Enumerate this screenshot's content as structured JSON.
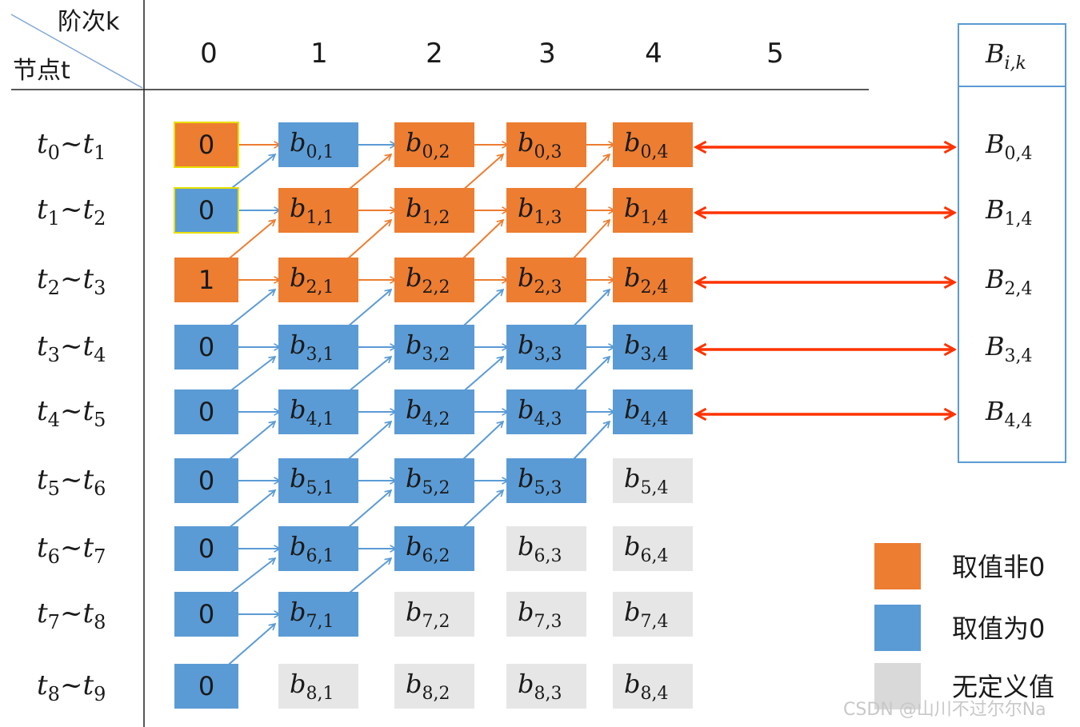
{
  "header": {
    "order_label": "阶次k",
    "node_label": "节点t",
    "orders": [
      "0",
      "1",
      "2",
      "3",
      "4",
      "5"
    ],
    "result_header": {
      "base": "B",
      "sub": "i,k"
    }
  },
  "rows": [
    {
      "interval": {
        "a": "0",
        "b": "1"
      },
      "k0": "0",
      "cells": [
        {
          "i": "0",
          "k": "1"
        },
        {
          "i": "0",
          "k": "2"
        },
        {
          "i": "0",
          "k": "3"
        },
        {
          "i": "0",
          "k": "4"
        }
      ],
      "result": {
        "i": "0",
        "k": "4"
      }
    },
    {
      "interval": {
        "a": "1",
        "b": "2"
      },
      "k0": "0",
      "cells": [
        {
          "i": "1",
          "k": "1"
        },
        {
          "i": "1",
          "k": "2"
        },
        {
          "i": "1",
          "k": "3"
        },
        {
          "i": "1",
          "k": "4"
        }
      ],
      "result": {
        "i": "1",
        "k": "4"
      }
    },
    {
      "interval": {
        "a": "2",
        "b": "3"
      },
      "k0": "1",
      "cells": [
        {
          "i": "2",
          "k": "1"
        },
        {
          "i": "2",
          "k": "2"
        },
        {
          "i": "2",
          "k": "3"
        },
        {
          "i": "2",
          "k": "4"
        }
      ],
      "result": {
        "i": "2",
        "k": "4"
      }
    },
    {
      "interval": {
        "a": "3",
        "b": "4"
      },
      "k0": "0",
      "cells": [
        {
          "i": "3",
          "k": "1"
        },
        {
          "i": "3",
          "k": "2"
        },
        {
          "i": "3",
          "k": "3"
        },
        {
          "i": "3",
          "k": "4"
        }
      ],
      "result": {
        "i": "3",
        "k": "4"
      }
    },
    {
      "interval": {
        "a": "4",
        "b": "5"
      },
      "k0": "0",
      "cells": [
        {
          "i": "4",
          "k": "1"
        },
        {
          "i": "4",
          "k": "2"
        },
        {
          "i": "4",
          "k": "3"
        },
        {
          "i": "4",
          "k": "4"
        }
      ],
      "result": {
        "i": "4",
        "k": "4"
      }
    },
    {
      "interval": {
        "a": "5",
        "b": "6"
      },
      "k0": "0",
      "cells": [
        {
          "i": "5",
          "k": "1"
        },
        {
          "i": "5",
          "k": "2"
        },
        {
          "i": "5",
          "k": "3"
        },
        {
          "i": "5",
          "k": "4"
        }
      ]
    },
    {
      "interval": {
        "a": "6",
        "b": "7"
      },
      "k0": "0",
      "cells": [
        {
          "i": "6",
          "k": "1"
        },
        {
          "i": "6",
          "k": "2"
        },
        {
          "i": "6",
          "k": "3"
        },
        {
          "i": "6",
          "k": "4"
        }
      ]
    },
    {
      "interval": {
        "a": "7",
        "b": "8"
      },
      "k0": "0",
      "cells": [
        {
          "i": "7",
          "k": "1"
        },
        {
          "i": "7",
          "k": "2"
        },
        {
          "i": "7",
          "k": "3"
        },
        {
          "i": "7",
          "k": "4"
        }
      ]
    },
    {
      "interval": {
        "a": "8",
        "b": "9"
      },
      "k0": "0",
      "cells": [
        {
          "i": "8",
          "k": "1"
        },
        {
          "i": "8",
          "k": "2"
        },
        {
          "i": "8",
          "k": "3"
        },
        {
          "i": "8",
          "k": "4"
        }
      ]
    }
  ],
  "state_grid": [
    [
      "O",
      "B",
      "O",
      "O",
      "O"
    ],
    [
      "B",
      "O",
      "O",
      "O",
      "O"
    ],
    [
      "O",
      "O",
      "O",
      "O",
      "O"
    ],
    [
      "B",
      "B",
      "B",
      "B",
      "B"
    ],
    [
      "B",
      "B",
      "B",
      "B",
      "B"
    ],
    [
      "B",
      "B",
      "B",
      "B",
      "G"
    ],
    [
      "B",
      "B",
      "B",
      "G",
      "G"
    ],
    [
      "B",
      "B",
      "G",
      "G",
      "G"
    ],
    [
      "B",
      "G",
      "G",
      "G",
      "G"
    ]
  ],
  "legend": [
    {
      "state": "O",
      "label": "取值非0"
    },
    {
      "state": "B",
      "label": "取值为0"
    },
    {
      "state": "G",
      "label": "无定义值"
    }
  ],
  "watermark": "CSDN @山川不过尔尔Na",
  "colors": {
    "orange": "#ED7D31",
    "blue": "#5B9BD5",
    "gray": "#E7E6E6",
    "legend_gray": "#D9D9D9",
    "arrow_orange": "#ED7D31",
    "arrow_blue": "#5B9BD5",
    "arrow_red": "#FF3300",
    "text": "#1a1a1a"
  }
}
